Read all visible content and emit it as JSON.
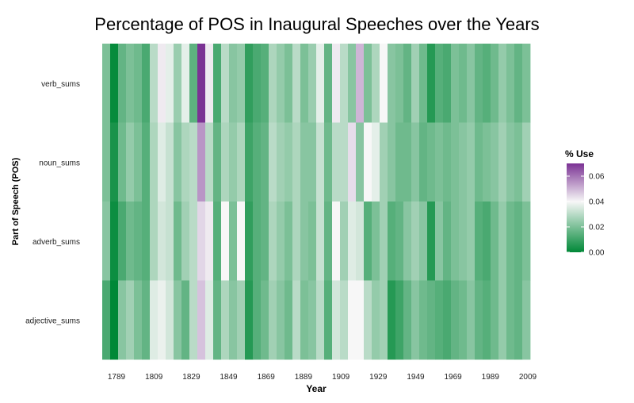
{
  "chart_data": {
    "type": "heatmap",
    "title": "Percentage of POS in Inaugural Speeches over the Years",
    "xlabel": "Year",
    "ylabel": "Part of Speech (POS)",
    "x_tick_labels": [
      "1789",
      "1809",
      "1829",
      "1849",
      "1869",
      "1889",
      "1909",
      "1929",
      "1949",
      "1969",
      "1989",
      "2009"
    ],
    "rows": [
      "verb_sums",
      "noun_sums",
      "adverb_sums",
      "adjective_sums"
    ],
    "columns_count": 54,
    "values": [
      [
        0.02,
        0.001,
        0.016,
        0.02,
        0.018,
        0.012,
        0.03,
        0.042,
        0.037,
        0.025,
        0.037,
        0.015,
        0.07,
        0.042,
        0.012,
        0.03,
        0.022,
        0.024,
        0.008,
        0.012,
        0.014,
        0.028,
        0.024,
        0.02,
        0.03,
        0.02,
        0.025,
        0.037,
        0.016,
        0.042,
        0.03,
        0.022,
        0.05,
        0.02,
        0.028,
        0.04,
        0.022,
        0.02,
        0.016,
        0.026,
        0.018,
        0.006,
        0.014,
        0.012,
        0.02,
        0.018,
        0.022,
        0.016,
        0.014,
        0.018,
        0.024,
        0.02,
        0.016,
        0.02
      ],
      [
        0.02,
        0.004,
        0.018,
        0.024,
        0.02,
        0.014,
        0.028,
        0.036,
        0.032,
        0.022,
        0.028,
        0.03,
        0.055,
        0.03,
        0.016,
        0.028,
        0.024,
        0.028,
        0.01,
        0.014,
        0.016,
        0.03,
        0.026,
        0.024,
        0.028,
        0.022,
        0.022,
        0.032,
        0.018,
        0.03,
        0.03,
        0.044,
        0.022,
        0.04,
        0.037,
        0.026,
        0.022,
        0.018,
        0.018,
        0.022,
        0.016,
        0.018,
        0.02,
        0.018,
        0.02,
        0.022,
        0.024,
        0.018,
        0.02,
        0.022,
        0.026,
        0.022,
        0.02,
        0.026
      ],
      [
        0.022,
        0.002,
        0.012,
        0.018,
        0.016,
        0.014,
        0.028,
        0.034,
        0.032,
        0.018,
        0.026,
        0.03,
        0.045,
        0.042,
        0.014,
        0.04,
        0.02,
        0.04,
        0.008,
        0.014,
        0.016,
        0.028,
        0.024,
        0.02,
        0.028,
        0.022,
        0.02,
        0.032,
        0.016,
        0.04,
        0.026,
        0.036,
        0.034,
        0.014,
        0.02,
        0.026,
        0.014,
        0.016,
        0.022,
        0.026,
        0.022,
        0.006,
        0.022,
        0.016,
        0.02,
        0.022,
        0.024,
        0.014,
        0.012,
        0.018,
        0.024,
        0.018,
        0.016,
        0.02
      ],
      [
        0.012,
        0.0,
        0.022,
        0.026,
        0.02,
        0.016,
        0.036,
        0.038,
        0.034,
        0.022,
        0.016,
        0.03,
        0.048,
        0.036,
        0.016,
        0.028,
        0.022,
        0.026,
        0.006,
        0.014,
        0.018,
        0.026,
        0.022,
        0.018,
        0.03,
        0.02,
        0.022,
        0.03,
        0.014,
        0.034,
        0.03,
        0.04,
        0.04,
        0.03,
        0.024,
        0.026,
        0.006,
        0.01,
        0.016,
        0.022,
        0.018,
        0.016,
        0.014,
        0.012,
        0.016,
        0.018,
        0.022,
        0.016,
        0.014,
        0.018,
        0.024,
        0.018,
        0.016,
        0.022
      ]
    ],
    "color_scale": {
      "low": "#008837",
      "mid": "#f7f7f7",
      "high": "#7b3294",
      "midpoint": 0.04,
      "min": 0.0,
      "max": 0.07
    },
    "legend": {
      "title": "% Use",
      "ticks": [
        "0.00",
        "0.02",
        "0.04",
        "0.06"
      ],
      "tick_values": [
        0.0,
        0.02,
        0.04,
        0.06
      ],
      "position": "right"
    },
    "grid": false
  }
}
